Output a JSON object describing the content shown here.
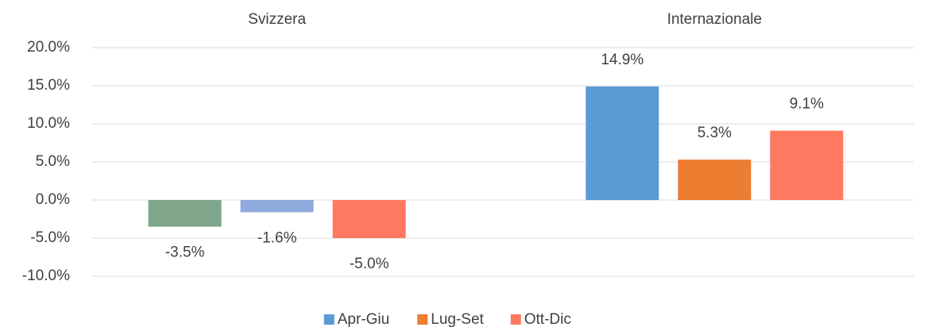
{
  "chart_data": {
    "type": "bar",
    "categories": [
      "Svizzera",
      "Internazionale"
    ],
    "series": [
      {
        "name": "Apr-Giu",
        "color": "#5b9bd5",
        "colors": [
          "#7fa58a",
          "#5b9bd5"
        ],
        "values": [
          -3.5,
          14.9
        ],
        "value_labels": [
          "-3.5%",
          "14.9%"
        ]
      },
      {
        "name": "Lug-Set",
        "color": "#ed7d31",
        "colors": [
          "#8faadc",
          "#ed7d31"
        ],
        "values": [
          -1.6,
          5.3
        ],
        "value_labels": [
          "-1.6%",
          "5.3%"
        ]
      },
      {
        "name": "Ott-Dic",
        "color": "#ff7961",
        "colors": [
          "#ff7961",
          "#ff7961"
        ],
        "values": [
          -5.0,
          9.1
        ],
        "value_labels": [
          "-5.0%",
          "9.1%"
        ]
      }
    ],
    "ylim": [
      -10,
      20
    ],
    "yticks": [
      {
        "value": -10,
        "label": "-10.0%"
      },
      {
        "value": -5,
        "label": "-5.0%"
      },
      {
        "value": 0,
        "label": "0.0%"
      },
      {
        "value": 5,
        "label": "5.0%"
      },
      {
        "value": 10,
        "label": "10.0%"
      },
      {
        "value": 15,
        "label": "15.0%"
      },
      {
        "value": 20,
        "label": "20.0%"
      }
    ],
    "grid": true,
    "legend": "bottom"
  }
}
